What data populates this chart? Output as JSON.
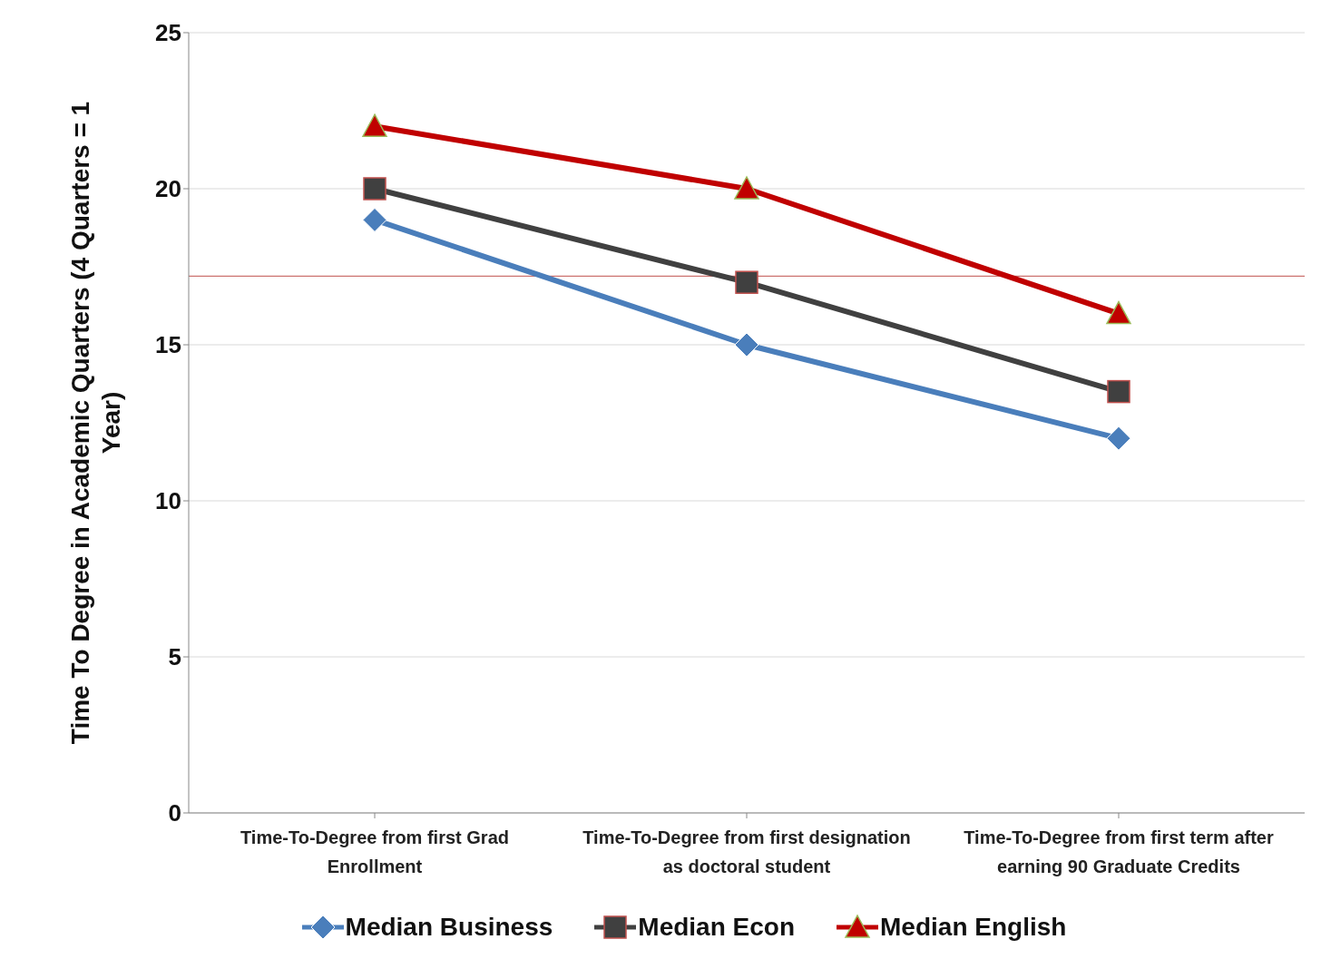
{
  "chart_data": {
    "type": "line",
    "ylabel": "Time To Degree in Academic Quarters (4 Quarters = 1 Year)",
    "categories": [
      "Time-To-Degree from first Grad Enrollment",
      "Time-To-Degree from first designation as doctoral student",
      "Time-To-Degree from first term after earning 90 Graduate Credits"
    ],
    "series": [
      {
        "name": "Median Business",
        "color": "#4a7ebb",
        "marker": "diamond",
        "values": [
          19,
          15,
          12
        ]
      },
      {
        "name": "Median Econ",
        "color": "#404040",
        "marker": "square",
        "values": [
          20,
          17,
          13.5
        ]
      },
      {
        "name": "Median English",
        "color": "#c00000",
        "marker": "triangle",
        "values": [
          22,
          20,
          16
        ]
      }
    ],
    "ylim": [
      0,
      25
    ],
    "yticks": [
      0,
      5,
      10,
      15,
      20,
      25
    ],
    "grid": "y",
    "legend": "bottom",
    "ref_lines": [
      {
        "axis": "y",
        "value": 17.2,
        "color": "#c0504d"
      }
    ]
  }
}
